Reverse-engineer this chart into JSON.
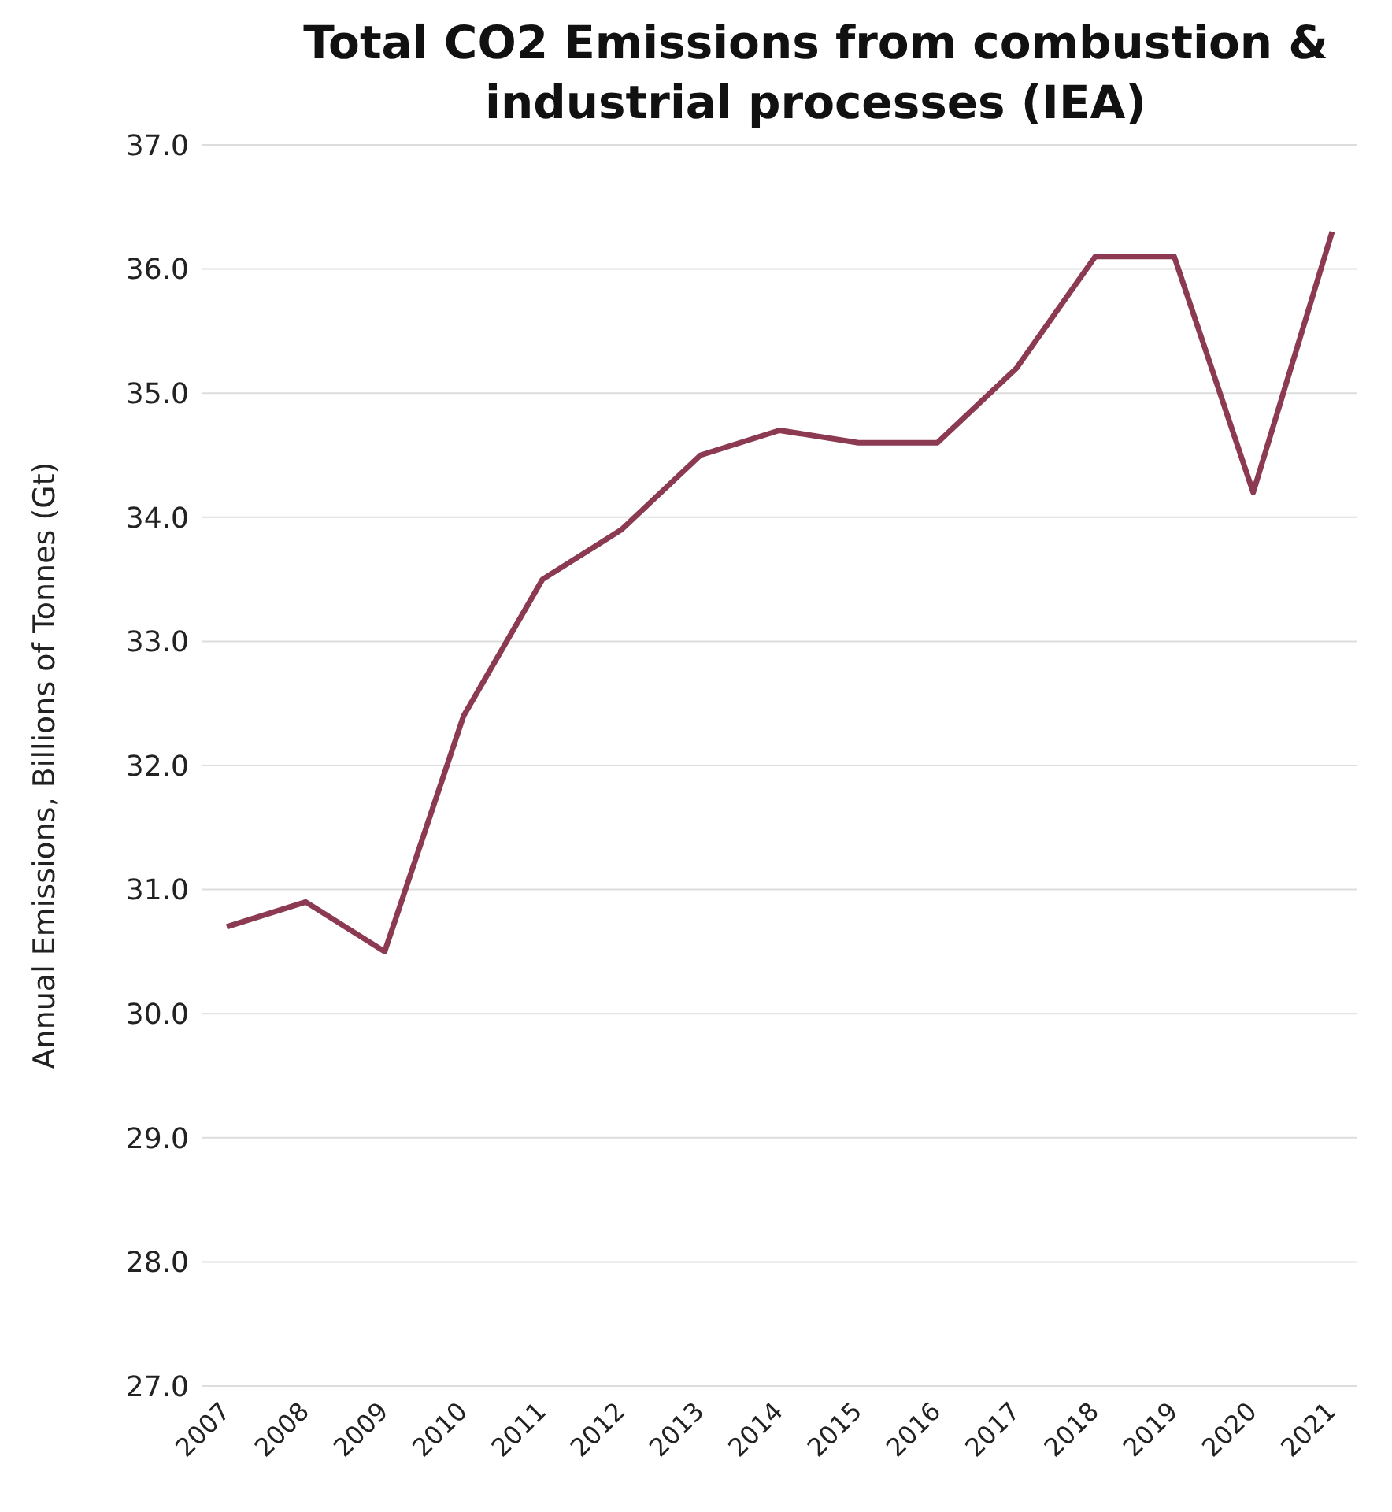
{
  "chart_data": {
    "type": "line",
    "title": "Total CO2 Emissions from combustion & industrial processes (IEA)",
    "ylabel": "Annual Emissions, Billions of Tonnes (Gt)",
    "categories": [
      "2007",
      "2008",
      "2009",
      "2010",
      "2011",
      "2012",
      "2013",
      "2014",
      "2015",
      "2016",
      "2017",
      "2018",
      "2019",
      "2020",
      "2021"
    ],
    "series": [
      {
        "color": "#8b3a52",
        "values": [
          30.7,
          30.9,
          30.5,
          32.4,
          33.5,
          33.9,
          34.5,
          34.7,
          34.6,
          34.6,
          35.2,
          36.1,
          36.1,
          34.2,
          36.3
        ]
      }
    ],
    "ylim": [
      27,
      37
    ],
    "yticks": [
      {
        "value": 27,
        "label": "27.0"
      },
      {
        "value": 28,
        "label": "28.0"
      },
      {
        "value": 29,
        "label": "29.0"
      },
      {
        "value": 30,
        "label": "30.0"
      },
      {
        "value": 31,
        "label": "31.0"
      },
      {
        "value": 32,
        "label": "32.0"
      },
      {
        "value": 33,
        "label": "33.0"
      },
      {
        "value": 34,
        "label": "34.0"
      },
      {
        "value": 35,
        "label": "35.0"
      },
      {
        "value": 36,
        "label": "36.0"
      },
      {
        "value": 37,
        "label": "37.0"
      }
    ],
    "grid": "y",
    "line_style": "solid"
  }
}
